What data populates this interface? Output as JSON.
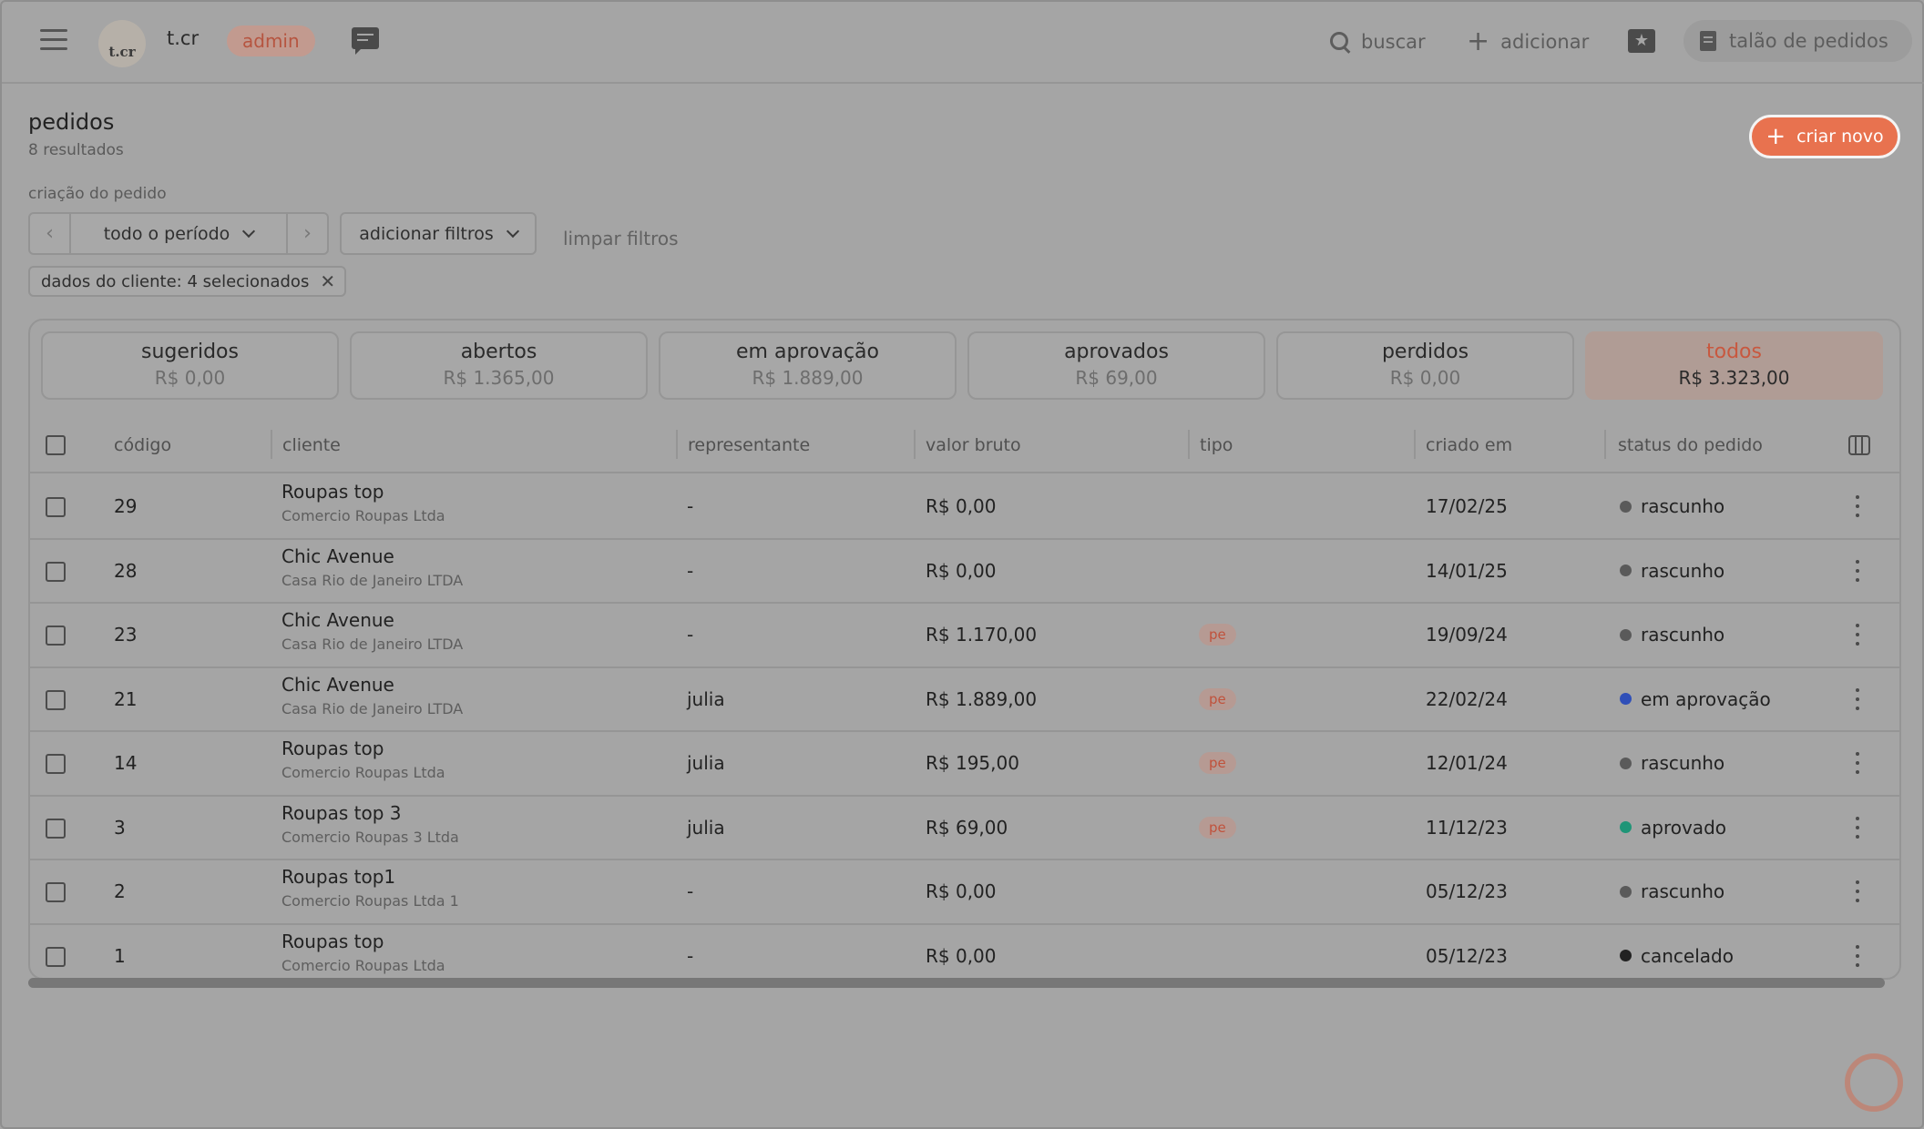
{
  "header": {
    "brand_avatar": "t.cr",
    "brand_name": "t.cr",
    "role_badge": "admin",
    "search_label": "buscar",
    "add_label": "adicionar",
    "order_book_label": "talão de pedidos"
  },
  "page": {
    "title": "pedidos",
    "result_count": "8 resultados",
    "create_button": "criar novo"
  },
  "filters": {
    "label": "criação do pedido",
    "period": "todo o período",
    "add_filters": "adicionar filtros",
    "clear": "limpar filtros",
    "active_chip": "dados do cliente: 4 selecionados"
  },
  "tabs": [
    {
      "label": "sugeridos",
      "value": "R$ 0,00"
    },
    {
      "label": "abertos",
      "value": "R$ 1.365,00"
    },
    {
      "label": "em aprovação",
      "value": "R$ 1.889,00"
    },
    {
      "label": "aprovados",
      "value": "R$ 69,00"
    },
    {
      "label": "perdidos",
      "value": "R$ 0,00"
    },
    {
      "label": "todos",
      "value": "R$ 3.323,00"
    }
  ],
  "table": {
    "columns": [
      "código",
      "cliente",
      "representante",
      "valor bruto",
      "tipo",
      "criado em",
      "status do pedido"
    ],
    "rows": [
      {
        "code": "29",
        "client": "Roupas top",
        "company": "Comercio Roupas Ltda",
        "rep": "-",
        "value": "R$ 0,00",
        "type": "",
        "created": "17/02/25",
        "status": "rascunho",
        "status_color": "#5a5a5a"
      },
      {
        "code": "28",
        "client": "Chic Avenue",
        "company": "Casa Rio de Janeiro LTDA",
        "rep": "-",
        "value": "R$ 0,00",
        "type": "",
        "created": "14/01/25",
        "status": "rascunho",
        "status_color": "#5a5a5a"
      },
      {
        "code": "23",
        "client": "Chic Avenue",
        "company": "Casa Rio de Janeiro LTDA",
        "rep": "-",
        "value": "R$ 1.170,00",
        "type": "pe",
        "created": "19/09/24",
        "status": "rascunho",
        "status_color": "#5a5a5a"
      },
      {
        "code": "21",
        "client": "Chic Avenue",
        "company": "Casa Rio de Janeiro LTDA",
        "rep": "julia",
        "value": "R$ 1.889,00",
        "type": "pe",
        "created": "22/02/24",
        "status": "em aprovação",
        "status_color": "#2f4fb8"
      },
      {
        "code": "14",
        "client": "Roupas top",
        "company": "Comercio Roupas Ltda",
        "rep": "julia",
        "value": "R$ 195,00",
        "type": "pe",
        "created": "12/01/24",
        "status": "rascunho",
        "status_color": "#5a5a5a"
      },
      {
        "code": "3",
        "client": "Roupas top 3",
        "company": "Comercio Roupas 3 Ltda",
        "rep": "julia",
        "value": "R$ 69,00",
        "type": "pe",
        "created": "11/12/23",
        "status": "aprovado",
        "status_color": "#1f9577"
      },
      {
        "code": "2",
        "client": "Roupas top1",
        "company": "Comercio Roupas Ltda 1",
        "rep": "-",
        "value": "R$ 0,00",
        "type": "",
        "created": "05/12/23",
        "status": "rascunho",
        "status_color": "#5a5a5a"
      },
      {
        "code": "1",
        "client": "Roupas top",
        "company": "Comercio Roupas Ltda",
        "rep": "-",
        "value": "R$ 0,00",
        "type": "",
        "created": "05/12/23",
        "status": "cancelado",
        "status_color": "#222222"
      }
    ]
  },
  "colors": {
    "accent": "#e8724f",
    "active_tab_text": "#c8583f"
  }
}
